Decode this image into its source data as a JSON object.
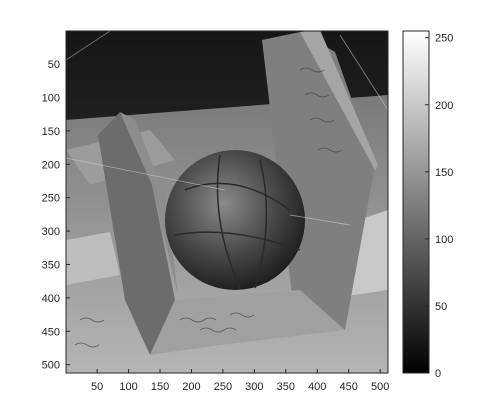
{
  "figure": {
    "image_description_free": true,
    "colormap": "gray",
    "x_ticks": [
      "50",
      "100",
      "150",
      "200",
      "250",
      "300",
      "350",
      "400",
      "450",
      "500"
    ],
    "y_ticks": [
      "50",
      "100",
      "150",
      "200",
      "250",
      "300",
      "350",
      "400",
      "450",
      "500"
    ],
    "x_tick_values": [
      50,
      100,
      150,
      200,
      250,
      300,
      350,
      400,
      450,
      500
    ],
    "y_tick_values": [
      50,
      100,
      150,
      200,
      250,
      300,
      350,
      400,
      450,
      500
    ],
    "x_range": [
      1,
      512
    ],
    "y_range": [
      1,
      512
    ],
    "colorbar_ticks": [
      "0",
      "50",
      "100",
      "150",
      "200",
      "250"
    ],
    "colorbar_tick_values": [
      0,
      50,
      100,
      150,
      200,
      250
    ],
    "colorbar_range": [
      0,
      255
    ],
    "colors": {
      "axis": "#262626",
      "background": "#ffffff"
    }
  }
}
